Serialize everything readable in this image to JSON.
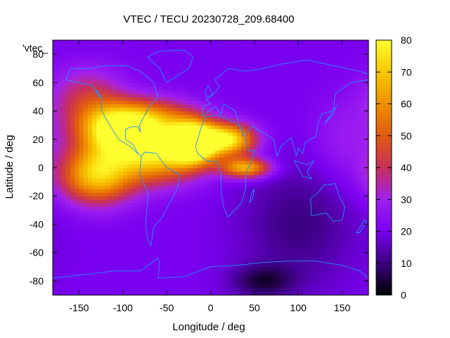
{
  "chart_data": {
    "type": "heatmap",
    "title": "VTEC / TECU 20230728_209.68400",
    "xlabel": "Longitude / deg",
    "ylabel": "Latitude / deg",
    "xlim": [
      -180,
      180
    ],
    "ylim": [
      -90,
      90
    ],
    "xticks": [
      -150,
      -100,
      -50,
      0,
      50,
      100,
      150
    ],
    "yticks": [
      -80,
      -60,
      -40,
      -20,
      0,
      20,
      40,
      60,
      80
    ],
    "colorbar": {
      "range": [
        0,
        80
      ],
      "ticks": [
        0,
        10,
        20,
        30,
        40,
        50,
        60,
        70,
        80
      ],
      "palette": [
        "#000000",
        "#3b0080",
        "#7a00f0",
        "#a020f0",
        "#c8305a",
        "#e05a10",
        "#f09000",
        "#f8c800",
        "#ffff30"
      ]
    },
    "legend_key": "'vtec_",
    "coastline_color": "#1e90ff",
    "blobs": [
      {
        "lon": -20,
        "lat": 18,
        "value": 72,
        "sx": 18,
        "sy": 10
      },
      {
        "lon": 20,
        "lat": 20,
        "value": 55,
        "sx": 22,
        "sy": 8
      },
      {
        "lon": -60,
        "lat": 10,
        "value": 50,
        "sx": 35,
        "sy": 14
      },
      {
        "lon": -130,
        "lat": -5,
        "value": 50,
        "sx": 30,
        "sy": 14
      },
      {
        "lon": -110,
        "lat": 25,
        "value": 45,
        "sx": 30,
        "sy": 12
      },
      {
        "lon": 40,
        "lat": 0,
        "value": 45,
        "sx": 20,
        "sy": 5
      },
      {
        "lon": -75,
        "lat": 35,
        "value": 35,
        "sx": 40,
        "sy": 10
      },
      {
        "lon": -140,
        "lat": 50,
        "value": 20,
        "sx": 30,
        "sy": 15
      },
      {
        "lon": 150,
        "lat": 20,
        "value": 8,
        "sx": 25,
        "sy": 20
      },
      {
        "lon": 100,
        "lat": -40,
        "value": -10,
        "sx": 45,
        "sy": 30
      },
      {
        "lon": 60,
        "lat": -80,
        "value": -14,
        "sx": 25,
        "sy": 8
      }
    ],
    "base_value": 20
  }
}
